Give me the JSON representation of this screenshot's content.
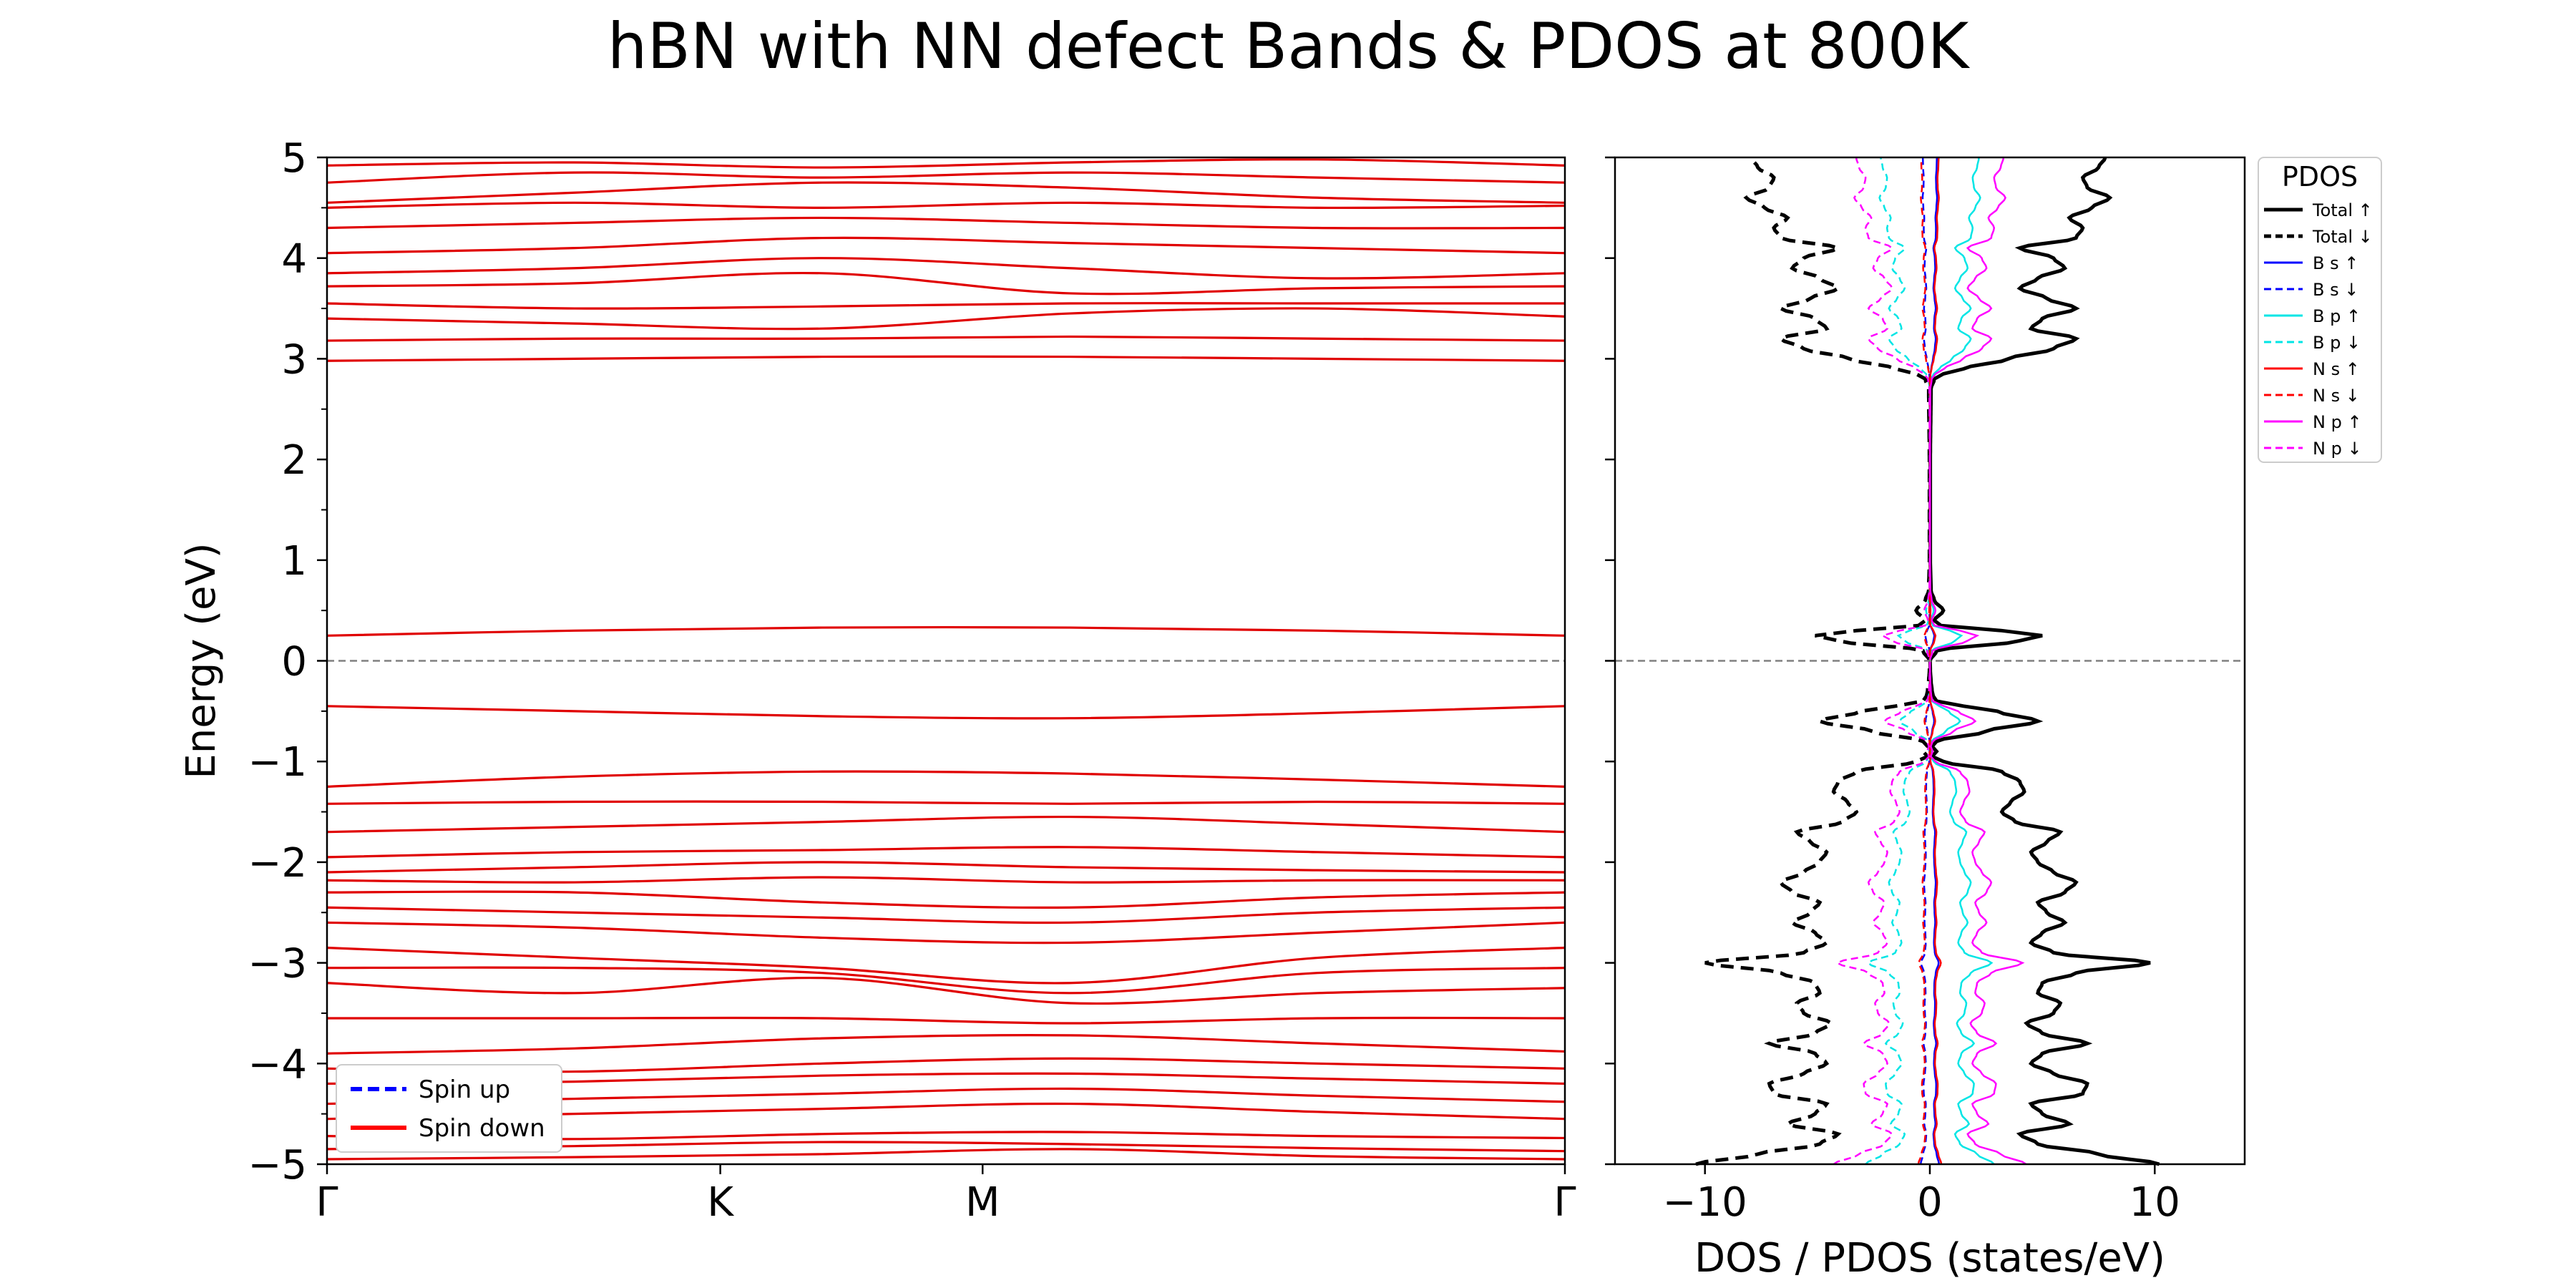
{
  "chart_data": [
    {
      "type": "line",
      "title": "hBN with NN defect Bands & PDOS at 800K",
      "ylabel": "Energy (eV)",
      "xlabel": "",
      "ylim": [
        -5,
        5
      ],
      "y_ticks": [
        -5,
        -4,
        -3,
        -2,
        -1,
        0,
        1,
        2,
        3,
        4,
        5
      ],
      "k_ticks": [
        {
          "label": "Γ",
          "pos": 0.0
        },
        {
          "label": "K",
          "pos": 0.3177
        },
        {
          "label": "M",
          "pos": 0.5296
        },
        {
          "label": "Γ",
          "pos": 1.0
        }
      ],
      "fermi_level": 0,
      "grid": false,
      "legend_placement": "lower-left",
      "legend": [
        {
          "name": "Spin up",
          "color": "#0000ff",
          "style": "dashed"
        },
        {
          "name": "Spin down",
          "color": "#ff0000",
          "style": "solid"
        }
      ],
      "spin_down_bands_eV": [
        [
          -4.95,
          -4.93,
          -4.9,
          -4.85,
          -4.92,
          -4.95
        ],
        [
          -4.85,
          -4.82,
          -4.78,
          -4.8,
          -4.84,
          -4.87
        ],
        [
          -4.72,
          -4.75,
          -4.7,
          -4.68,
          -4.72,
          -4.74
        ],
        [
          -4.55,
          -4.5,
          -4.45,
          -4.4,
          -4.48,
          -4.55
        ],
        [
          -4.4,
          -4.35,
          -4.3,
          -4.25,
          -4.32,
          -4.38
        ],
        [
          -4.2,
          -4.18,
          -4.12,
          -4.1,
          -4.15,
          -4.2
        ],
        [
          -4.05,
          -4.08,
          -4.0,
          -3.95,
          -4.0,
          -4.05
        ],
        [
          -3.9,
          -3.85,
          -3.75,
          -3.72,
          -3.8,
          -3.88
        ],
        [
          -3.55,
          -3.55,
          -3.55,
          -3.6,
          -3.55,
          -3.55
        ],
        [
          -3.2,
          -3.3,
          -3.15,
          -3.4,
          -3.3,
          -3.25
        ],
        [
          -3.05,
          -3.05,
          -3.1,
          -3.3,
          -3.1,
          -3.05
        ],
        [
          -2.85,
          -2.95,
          -3.05,
          -3.2,
          -2.95,
          -2.85
        ],
        [
          -2.6,
          -2.65,
          -2.75,
          -2.8,
          -2.7,
          -2.6
        ],
        [
          -2.45,
          -2.5,
          -2.55,
          -2.6,
          -2.5,
          -2.45
        ],
        [
          -2.3,
          -2.3,
          -2.4,
          -2.45,
          -2.35,
          -2.3
        ],
        [
          -2.18,
          -2.2,
          -2.15,
          -2.2,
          -2.18,
          -2.18
        ],
        [
          -2.1,
          -2.05,
          -2.0,
          -2.05,
          -2.08,
          -2.1
        ],
        [
          -1.95,
          -1.9,
          -1.88,
          -1.85,
          -1.9,
          -1.95
        ],
        [
          -1.7,
          -1.65,
          -1.6,
          -1.55,
          -1.62,
          -1.7
        ],
        [
          -1.42,
          -1.4,
          -1.4,
          -1.42,
          -1.4,
          -1.42
        ],
        [
          -1.25,
          -1.15,
          -1.1,
          -1.12,
          -1.18,
          -1.25
        ],
        [
          -0.45,
          -0.5,
          -0.55,
          -0.57,
          -0.52,
          -0.45
        ],
        [
          0.25,
          0.3,
          0.33,
          0.33,
          0.3,
          0.25
        ],
        [
          2.98,
          3.0,
          3.02,
          3.02,
          3.0,
          2.98
        ],
        [
          3.18,
          3.2,
          3.2,
          3.22,
          3.2,
          3.18
        ],
        [
          3.4,
          3.35,
          3.3,
          3.45,
          3.5,
          3.42
        ],
        [
          3.55,
          3.5,
          3.52,
          3.55,
          3.55,
          3.55
        ],
        [
          3.72,
          3.75,
          3.85,
          3.65,
          3.7,
          3.72
        ],
        [
          3.85,
          3.9,
          4.0,
          3.9,
          3.8,
          3.85
        ],
        [
          4.05,
          4.1,
          4.2,
          4.15,
          4.1,
          4.05
        ],
        [
          4.3,
          4.35,
          4.4,
          4.35,
          4.3,
          4.3
        ],
        [
          4.5,
          4.55,
          4.5,
          4.55,
          4.5,
          4.52
        ],
        [
          4.55,
          4.65,
          4.75,
          4.7,
          4.6,
          4.55
        ],
        [
          4.75,
          4.85,
          4.8,
          4.85,
          4.8,
          4.75
        ],
        [
          4.92,
          4.95,
          4.9,
          4.95,
          4.98,
          4.92
        ]
      ]
    },
    {
      "type": "line",
      "xlabel": "DOS / PDOS (states/eV)",
      "xlim": [
        -14,
        14
      ],
      "x_ticks": [
        -10,
        0,
        10
      ],
      "ylim": [
        -5,
        5
      ],
      "fermi_level": 0,
      "legend_title": "PDOS",
      "legend_placement": "upper-right",
      "series": [
        {
          "name": "Total ↑",
          "color": "#000000",
          "style": "solid",
          "sign": 1,
          "scale": 1.0
        },
        {
          "name": "Total ↓",
          "color": "#000000",
          "style": "dashed",
          "sign": -1,
          "scale": 1.0
        },
        {
          "name": "B s ↑",
          "color": "#0000ff",
          "style": "solid",
          "sign": 1,
          "scale": 0.04
        },
        {
          "name": "B s ↓",
          "color": "#0000ff",
          "style": "dashed",
          "sign": -1,
          "scale": 0.04
        },
        {
          "name": "B p ↑",
          "color": "#00e5e5",
          "style": "solid",
          "sign": 1,
          "scale": 0.28
        },
        {
          "name": "B p ↓",
          "color": "#00e5e5",
          "style": "dashed",
          "sign": -1,
          "scale": 0.28
        },
        {
          "name": "N s ↑",
          "color": "#ff0000",
          "style": "solid",
          "sign": 1,
          "scale": 0.05
        },
        {
          "name": "N s ↓",
          "color": "#ff0000",
          "style": "dashed",
          "sign": -1,
          "scale": 0.05
        },
        {
          "name": "N p ↑",
          "color": "#ff00ff",
          "style": "solid",
          "sign": 1,
          "scale": 0.42
        },
        {
          "name": "N p ↓",
          "color": "#ff00ff",
          "style": "dashed",
          "sign": -1,
          "scale": 0.42
        }
      ],
      "total_dos_profile": {
        "energy_eV": [
          -5.0,
          -4.9,
          -4.8,
          -4.7,
          -4.6,
          -4.5,
          -4.4,
          -4.3,
          -4.2,
          -4.1,
          -4.0,
          -3.9,
          -3.8,
          -3.7,
          -3.6,
          -3.5,
          -3.4,
          -3.3,
          -3.2,
          -3.1,
          -3.0,
          -2.9,
          -2.8,
          -2.7,
          -2.6,
          -2.5,
          -2.4,
          -2.3,
          -2.2,
          -2.1,
          -2.0,
          -1.9,
          -1.8,
          -1.7,
          -1.6,
          -1.5,
          -1.4,
          -1.3,
          -1.2,
          -1.1,
          -1.0,
          -0.95,
          -0.9,
          -0.85,
          -0.8,
          -0.7,
          -0.6,
          -0.5,
          -0.45,
          -0.4,
          -0.35,
          -0.3,
          -0.2,
          -0.1,
          0.0,
          0.1,
          0.2,
          0.25,
          0.3,
          0.35,
          0.4,
          0.5,
          0.6,
          0.7,
          1.0,
          2.0,
          2.7,
          2.8,
          2.85,
          2.9,
          3.0,
          3.1,
          3.2,
          3.3,
          3.4,
          3.5,
          3.6,
          3.7,
          3.8,
          3.9,
          4.0,
          4.1,
          4.2,
          4.3,
          4.4,
          4.5,
          4.6,
          4.7,
          4.8,
          4.9,
          5.0
        ],
        "states_per_eV": [
          10.2,
          7.5,
          4.8,
          4.0,
          6.2,
          5.0,
          4.5,
          6.8,
          7.0,
          5.5,
          4.5,
          5.0,
          7.0,
          5.0,
          4.3,
          5.5,
          5.8,
          4.8,
          5.0,
          6.5,
          9.8,
          5.5,
          4.5,
          5.0,
          6.0,
          5.2,
          4.8,
          6.0,
          6.5,
          5.5,
          4.8,
          4.5,
          5.2,
          5.8,
          3.8,
          3.2,
          3.6,
          4.2,
          4.0,
          3.2,
          0.6,
          0.1,
          0.3,
          0.1,
          0.3,
          2.5,
          4.8,
          3.0,
          1.5,
          0.3,
          0.15,
          0.1,
          0.05,
          0.02,
          0.01,
          0.3,
          4.0,
          5.0,
          3.2,
          0.5,
          0.2,
          0.6,
          0.2,
          0.05,
          0.02,
          0.02,
          0.05,
          0.2,
          0.6,
          1.5,
          3.5,
          5.5,
          6.5,
          4.5,
          5.0,
          6.5,
          5.2,
          4.0,
          4.8,
          6.0,
          5.5,
          4.0,
          6.5,
          6.8,
          6.2,
          7.2,
          8.0,
          7.0,
          6.8,
          7.5,
          7.8
        ]
      }
    }
  ]
}
